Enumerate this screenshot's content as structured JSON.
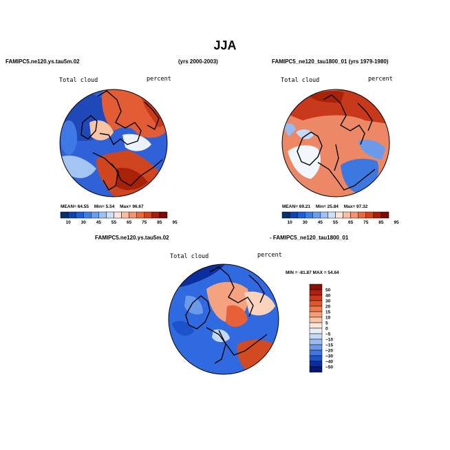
{
  "main_title": "JJA",
  "panels": [
    {
      "case_name": "FAMIPC5.ne120.ys.tau5m.02",
      "years": "(yrs 2000-2003)",
      "variable": "Total cloud",
      "units": "percent",
      "stats": {
        "mean_label": "MEAN=",
        "mean": "64.55",
        "min_label": "Min=",
        "min": "5.54",
        "max_label": "Max=",
        "max": "96.67"
      }
    },
    {
      "case_name": "FAMIPC5_ne120_tau1800_01 (yrs 1979-1980)",
      "variable": "Total cloud",
      "units": "percent",
      "stats": {
        "mean_label": "MEAN=",
        "mean": "69.21",
        "min_label": "Min=",
        "min": "25.84",
        "max_label": "Max=",
        "max": "97.32"
      }
    },
    {
      "case_name_left": "FAMIPC5.ne120.ys.tau5m.02",
      "case_name_right": "- FAMIPC5_ne120_tau1800_01",
      "variable": "Total cloud",
      "units": "percent",
      "stats": "MIN = -81.87 MAX = 54.64"
    }
  ],
  "chart_data": [
    {
      "type": "heatmap",
      "projection": "north polar stereographic",
      "title": "FAMIPC5.ne120.ys.tau5m.02",
      "subtitle": "(yrs 2000-2003)",
      "variable": "Total cloud",
      "units": "percent",
      "mean": 64.55,
      "min": 5.54,
      "max": 96.67,
      "colorbar_ticks": [
        "10",
        "30",
        "45",
        "55",
        "65",
        "75",
        "85",
        "95"
      ],
      "colorbar_orientation": "horizontal",
      "colorbar_colors": [
        "#08306b",
        "#0c44ad",
        "#1d5fd6",
        "#3c7fe8",
        "#6a9ff0",
        "#9cc1f6",
        "#cde0fb",
        "#fbe3d6",
        "#f8bfa4",
        "#f3936f",
        "#e9683f",
        "#d2421e",
        "#a81d08",
        "#7a0a04"
      ]
    },
    {
      "type": "heatmap",
      "projection": "north polar stereographic",
      "title": "FAMIPC5_ne120_tau1800_01 (yrs 1979-1980)",
      "variable": "Total cloud",
      "units": "percent",
      "mean": 69.21,
      "min": 25.84,
      "max": 97.32,
      "colorbar_ticks": [
        "10",
        "30",
        "45",
        "55",
        "65",
        "75",
        "85",
        "95"
      ],
      "colorbar_orientation": "horizontal",
      "colorbar_colors": [
        "#08306b",
        "#0c44ad",
        "#1d5fd6",
        "#3c7fe8",
        "#6a9ff0",
        "#9cc1f6",
        "#cde0fb",
        "#fbe3d6",
        "#f8bfa4",
        "#f3936f",
        "#e9683f",
        "#d2421e",
        "#a81d08",
        "#7a0a04"
      ]
    },
    {
      "type": "heatmap",
      "projection": "north polar stereographic",
      "title": "FAMIPC5.ne120.ys.tau5m.02 - FAMIPC5_ne120_tau1800_01",
      "variable": "Total cloud",
      "units": "percent",
      "min": -81.87,
      "max": 54.64,
      "colorbar_ticks": [
        "50",
        "40",
        "30",
        "20",
        "15",
        "10",
        "5",
        "0",
        "−5",
        "−10",
        "−15",
        "−20",
        "−30",
        "−40",
        "−50"
      ],
      "colorbar_orientation": "vertical",
      "colorbar_colors": [
        "#8b0f04",
        "#b21e0a",
        "#cf3514",
        "#e2562b",
        "#ee7a4e",
        "#f59e78",
        "#fac4a8",
        "#fde6d8",
        "#e6effc",
        "#c4d8f8",
        "#99bbf2",
        "#6c9aea",
        "#3d77e0",
        "#1c53cc",
        "#0a2e9e",
        "#061874"
      ]
    }
  ]
}
